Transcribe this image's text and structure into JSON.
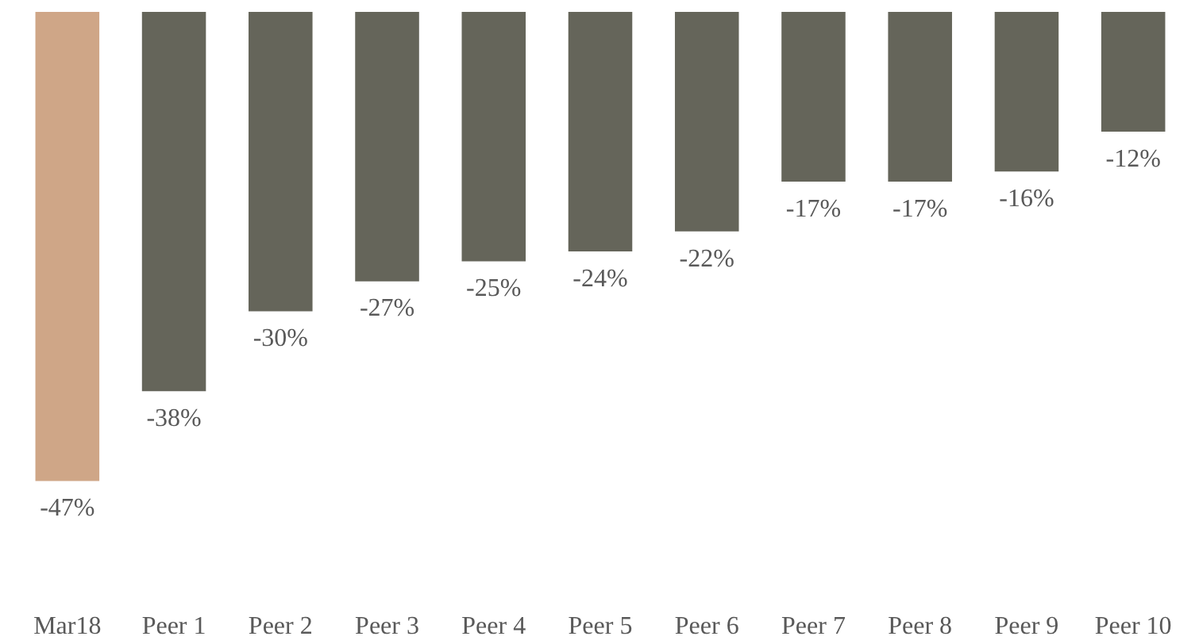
{
  "chart_data": {
    "type": "bar",
    "categories": [
      "Mar18",
      "Peer 1",
      "Peer 2",
      "Peer 3",
      "Peer 4",
      "Peer 5",
      "Peer 6",
      "Peer 7",
      "Peer 8",
      "Peer 9",
      "Peer 10"
    ],
    "values": [
      -47,
      -38,
      -30,
      -27,
      -25,
      -24,
      -22,
      -17,
      -17,
      -16,
      -12
    ],
    "colors": [
      "#cfa687",
      "#65655a",
      "#65655a",
      "#65655a",
      "#65655a",
      "#65655a",
      "#65655a",
      "#65655a",
      "#65655a",
      "#65655a",
      "#65655a"
    ],
    "value_labels": [
      "-47%",
      "-38%",
      "-30%",
      "-27%",
      "-25%",
      "-24%",
      "-22%",
      "-17%",
      "-17%",
      "-16%",
      "-12%"
    ],
    "grid": false
  }
}
